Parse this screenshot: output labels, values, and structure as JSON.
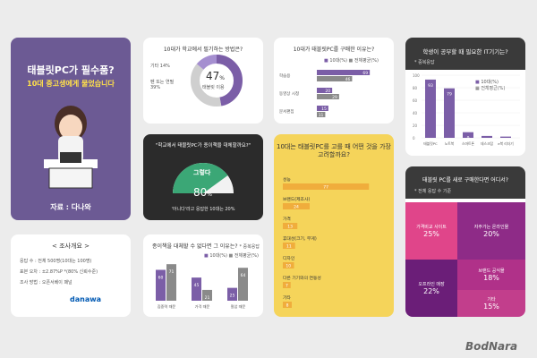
{
  "hero": {
    "line1": "태블릿PC가 필수품?",
    "line2": "10대 중고생에게 물었습니다",
    "source": "자료 : 다나와"
  },
  "survey": {
    "title": "< 조사개요 >",
    "rows": [
      "응답 수 : 전체 500명(10대는 100명)",
      "표본 오차 : ±2.87%P *(80% 신뢰수준)",
      "조사 방법 : 오픈서베이 패널"
    ],
    "brand": "danawa"
  },
  "colors": {
    "purple": "#7b5ea7",
    "gray": "#8a8a8a",
    "dark": "#2b2b2b",
    "yellow": "#f5d45a",
    "orange": "#f0ad3c"
  },
  "watermark": "BodNara",
  "chart_data": [
    {
      "type": "pie",
      "title": "10대가 학교에서 필기하는 방법은?",
      "slices": [
        {
          "label": "태블릿 이용",
          "value": 47
        },
        {
          "label": "펜 또는 연필",
          "value": 39
        },
        {
          "label": "기타",
          "value": 14
        }
      ],
      "center_value": "47",
      "center_unit": "%",
      "center_label": "태블릿 이용"
    },
    {
      "type": "bar",
      "orientation": "horizontal",
      "title": "10대가 태블릿PC를 구매한 이유는?",
      "series": [
        {
          "name": "10대(%)",
          "values": [
            69,
            20,
            15
          ]
        },
        {
          "name": "전체평균(%)",
          "values": [
            46,
            29,
            11
          ]
        }
      ],
      "categories": [
        "학습용",
        "동영상 시청",
        "문서편집"
      ]
    },
    {
      "type": "bar",
      "title": "학생이 공부할 때 필요한 IT기기는?",
      "subtitle": "* 중복응답",
      "categories": [
        "태블릿PC",
        "노트북",
        "스마트폰",
        "데스크탑",
        "e북 리더기"
      ],
      "series": [
        {
          "name": "10대(%)",
          "values": [
            93,
            79,
            9,
            3,
            2
          ]
        },
        {
          "name": "전체평균(%)",
          "values": [
            0,
            0,
            66,
            21,
            9
          ]
        }
      ],
      "ylim": [
        0,
        100
      ],
      "yticks": [
        "100",
        "80",
        "60",
        "40",
        "20",
        "0"
      ]
    },
    {
      "type": "bar",
      "title": "\"학교에서 태블릿PC가 종이책을 대체할까요?\"",
      "categories": [
        "그렇다"
      ],
      "values": [
        80
      ],
      "gauge_label": "그렇다",
      "gauge_value": "80",
      "gauge_unit": "%",
      "note": "'아니다'라고 응답한 10대는 20%"
    },
    {
      "type": "bar",
      "orientation": "horizontal",
      "title": "10대는 태블릿PC를 고를 때 어떤 것을 가장 고려할까요?",
      "categories": [
        "성능",
        "브랜드(제조사)",
        "가격",
        "휴대성(크기, 무게)",
        "디자인",
        "다른 기기와의 연동성",
        "기타"
      ],
      "values": [
        77,
        24,
        13,
        11,
        10,
        7,
        8
      ]
    },
    {
      "type": "bar",
      "title": "종이책을 대체할 수 없다면 그 이유는?",
      "subtitle": "* 중복응답",
      "categories": [
        "집중력 때문",
        "가격 때문",
        "필압 때문"
      ],
      "series": [
        {
          "name": "10대(%)",
          "values": [
            60,
            45,
            25
          ]
        },
        {
          "name": "전체평균(%)",
          "values": [
            71,
            21,
            64
          ]
        }
      ]
    },
    {
      "type": "heatmap",
      "title": "태블릿 PC를 새로 구매한다면 어디서?",
      "subtitle": "* 전체 응답 수 기준",
      "cells": [
        {
          "label": "가격비교 사이트",
          "value": "25%",
          "color": "#e0458a"
        },
        {
          "label": "자주가는 온라인몰",
          "value": "20%",
          "color": "#8e2b87"
        },
        {
          "label": "오프라인 매장",
          "value": "22%",
          "color": "#6b1e78"
        },
        {
          "label": "브랜드 공식몰",
          "value": "18%",
          "color": "#b03189"
        },
        {
          "label": "기타",
          "value": "15%",
          "color": "#c23e8c"
        }
      ]
    }
  ]
}
